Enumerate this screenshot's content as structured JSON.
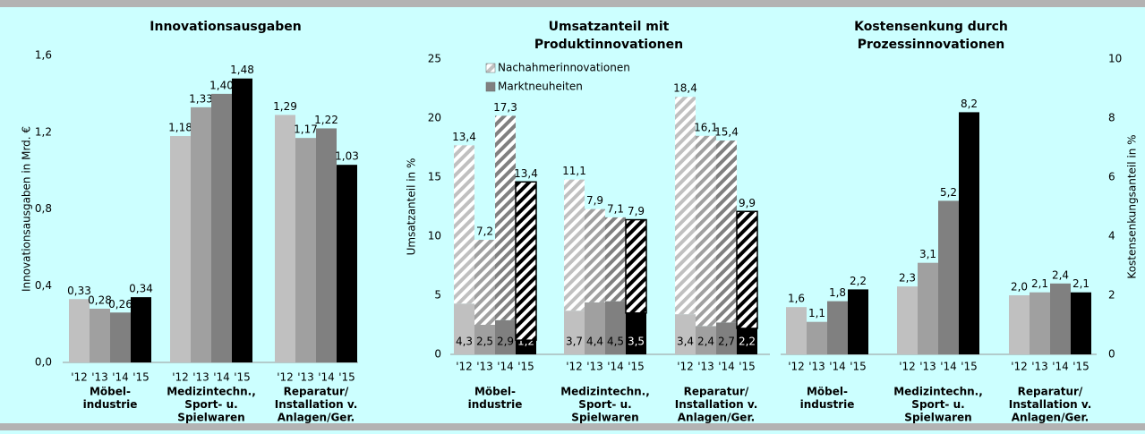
{
  "chart_data": [
    {
      "type": "bar",
      "title": [
        "Innovationsausgaben"
      ],
      "y_label": "Innovationsausgaben in Mrd. €",
      "categories": [
        [
          "Möbel-",
          "industrie"
        ],
        [
          "Medizintechn.,",
          "Sport- u.",
          "Spielwaren"
        ],
        [
          "Reparatur/",
          "Installation v.",
          "Anlagen/Ger."
        ]
      ],
      "years": [
        "'12",
        "'13",
        "'14",
        "'15"
      ],
      "year_colors": [
        "#c0c0c0",
        "#a0a0a0",
        "#808080",
        "#000000"
      ],
      "values": [
        [
          0.33,
          0.28,
          0.26,
          0.34
        ],
        [
          1.18,
          1.33,
          1.4,
          1.48
        ],
        [
          1.29,
          1.17,
          1.22,
          1.03
        ]
      ],
      "value_labels": [
        [
          "0,33",
          "0,28",
          "0,26",
          "0,34"
        ],
        [
          "1,18",
          "1,33",
          "1,40",
          "1,48"
        ],
        [
          "1,29",
          "1,17",
          "1,22",
          "1,03"
        ]
      ],
      "ylim": [
        0,
        1.6
      ],
      "yticks": [
        {
          "value": 0,
          "label": "0,0"
        },
        {
          "value": 0.4,
          "label": "0,4"
        },
        {
          "value": 0.8,
          "label": "0,8"
        },
        {
          "value": 1.2,
          "label": "1,2"
        },
        {
          "value": 1.6,
          "label": "1,6"
        }
      ],
      "axis_side": "left"
    },
    {
      "type": "stacked_bar",
      "title": [
        "Umsatzanteil mit",
        "Produktinnovationen"
      ],
      "y_label": "Umsatzanteil in %",
      "categories": [
        [
          "Möbel-",
          "industrie"
        ],
        [
          "Medizintechn.,",
          "Sport- u.",
          "Spielwaren"
        ],
        [
          "Reparatur/",
          "Installation v.",
          "Anlagen/Ger."
        ]
      ],
      "years": [
        "'12",
        "'13",
        "'14",
        "'15"
      ],
      "year_colors": [
        "#c0c0c0",
        "#a0a0a0",
        "#808080",
        "#000000"
      ],
      "series": [
        {
          "name": "Marktneuheiten",
          "hatched": false,
          "values": [
            [
              4.3,
              2.5,
              2.9,
              1.2
            ],
            [
              3.7,
              4.4,
              4.5,
              3.5
            ],
            [
              3.4,
              2.4,
              2.7,
              2.2
            ]
          ],
          "value_labels": [
            [
              "4,3",
              "2,5",
              "2,9",
              "1,2"
            ],
            [
              "3,7",
              "4,4",
              "4,5",
              "3,5"
            ],
            [
              "3,4",
              "2,4",
              "2,7",
              "2,2"
            ]
          ]
        },
        {
          "name": "Nachahmerinnovationen",
          "hatched": true,
          "values": [
            [
              13.4,
              7.2,
              17.3,
              13.4
            ],
            [
              11.1,
              7.9,
              7.1,
              7.9
            ],
            [
              18.4,
              16.1,
              15.4,
              9.9
            ]
          ],
          "value_labels": [
            [
              "13,4",
              "7,2",
              "17,3",
              "13,4"
            ],
            [
              "11,1",
              "7,9",
              "7,1",
              "7,9"
            ],
            [
              "18,4",
              "16,1",
              "15,4",
              "9,9"
            ]
          ]
        }
      ],
      "ylim": [
        0,
        25
      ],
      "yticks": [
        0,
        5,
        10,
        15,
        20,
        25
      ],
      "axis_side": "left"
    },
    {
      "type": "bar",
      "title": [
        "Kostensenkung durch",
        "Prozessinnovationen"
      ],
      "y_label": "Kostensenkungsanteil in %",
      "categories": [
        [
          "Möbel-",
          "industrie"
        ],
        [
          "Medizintechn.,",
          "Sport- u.",
          "Spielwaren"
        ],
        [
          "Reparatur/",
          "Installation v.",
          "Anlagen/Ger."
        ]
      ],
      "years": [
        "'12",
        "'13",
        "'14",
        "'15"
      ],
      "year_colors": [
        "#c0c0c0",
        "#a0a0a0",
        "#808080",
        "#000000"
      ],
      "values": [
        [
          1.6,
          1.1,
          1.8,
          2.2
        ],
        [
          2.3,
          3.1,
          5.2,
          8.2
        ],
        [
          2.0,
          2.1,
          2.4,
          2.1
        ]
      ],
      "value_labels": [
        [
          "1,6",
          "1,1",
          "1,8",
          "2,2"
        ],
        [
          "2,3",
          "3,1",
          "5,2",
          "8,2"
        ],
        [
          "2,0",
          "2,1",
          "2,4",
          "2,1"
        ]
      ],
      "ylim": [
        0,
        10
      ],
      "yticks": [
        0,
        2,
        4,
        6,
        8,
        10
      ],
      "axis_side": "right"
    }
  ]
}
